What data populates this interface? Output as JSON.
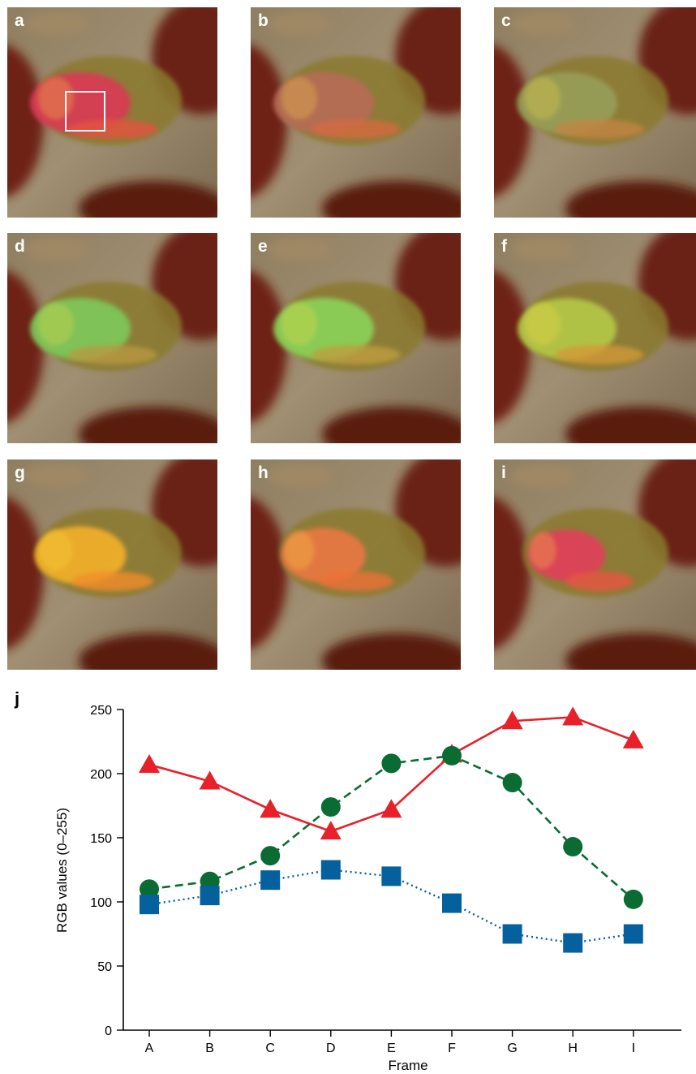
{
  "panels": [
    {
      "label": "a",
      "progress": 0.0,
      "roi": true
    },
    {
      "label": "b",
      "progress": 0.125,
      "roi": false
    },
    {
      "label": "c",
      "progress": 0.25,
      "roi": false
    },
    {
      "label": "d",
      "progress": 0.375,
      "roi": false
    },
    {
      "label": "e",
      "progress": 0.5,
      "roi": false
    },
    {
      "label": "f",
      "progress": 0.625,
      "roi": false
    },
    {
      "label": "g",
      "progress": 0.75,
      "roi": false
    },
    {
      "label": "h",
      "progress": 0.875,
      "roi": false
    },
    {
      "label": "i",
      "progress": 1.0,
      "roi": false
    }
  ],
  "chart_data": {
    "type": "line",
    "panel_label": "j",
    "xlabel": "Frame",
    "ylabel": "RGB values (0–255)",
    "categories": [
      "A",
      "B",
      "C",
      "D",
      "E",
      "F",
      "G",
      "H",
      "I"
    ],
    "ylim": [
      0,
      250
    ],
    "yticks": [
      0,
      50,
      100,
      150,
      200,
      250
    ],
    "grid": false,
    "legend": "none",
    "series": [
      {
        "color": "#e8202a",
        "marker": "triangle",
        "line": "solid",
        "values": [
          207,
          194,
          172,
          155,
          172,
          215,
          241,
          244,
          226
        ]
      },
      {
        "color": "#0a6b33",
        "marker": "circle",
        "line": "dashed",
        "values": [
          110,
          116,
          136,
          174,
          208,
          214,
          193,
          143,
          102
        ]
      },
      {
        "color": "#05609e",
        "marker": "square",
        "line": "dotted",
        "values": [
          98,
          105,
          117,
          125,
          120,
          99,
          75,
          68,
          75
        ]
      }
    ]
  }
}
